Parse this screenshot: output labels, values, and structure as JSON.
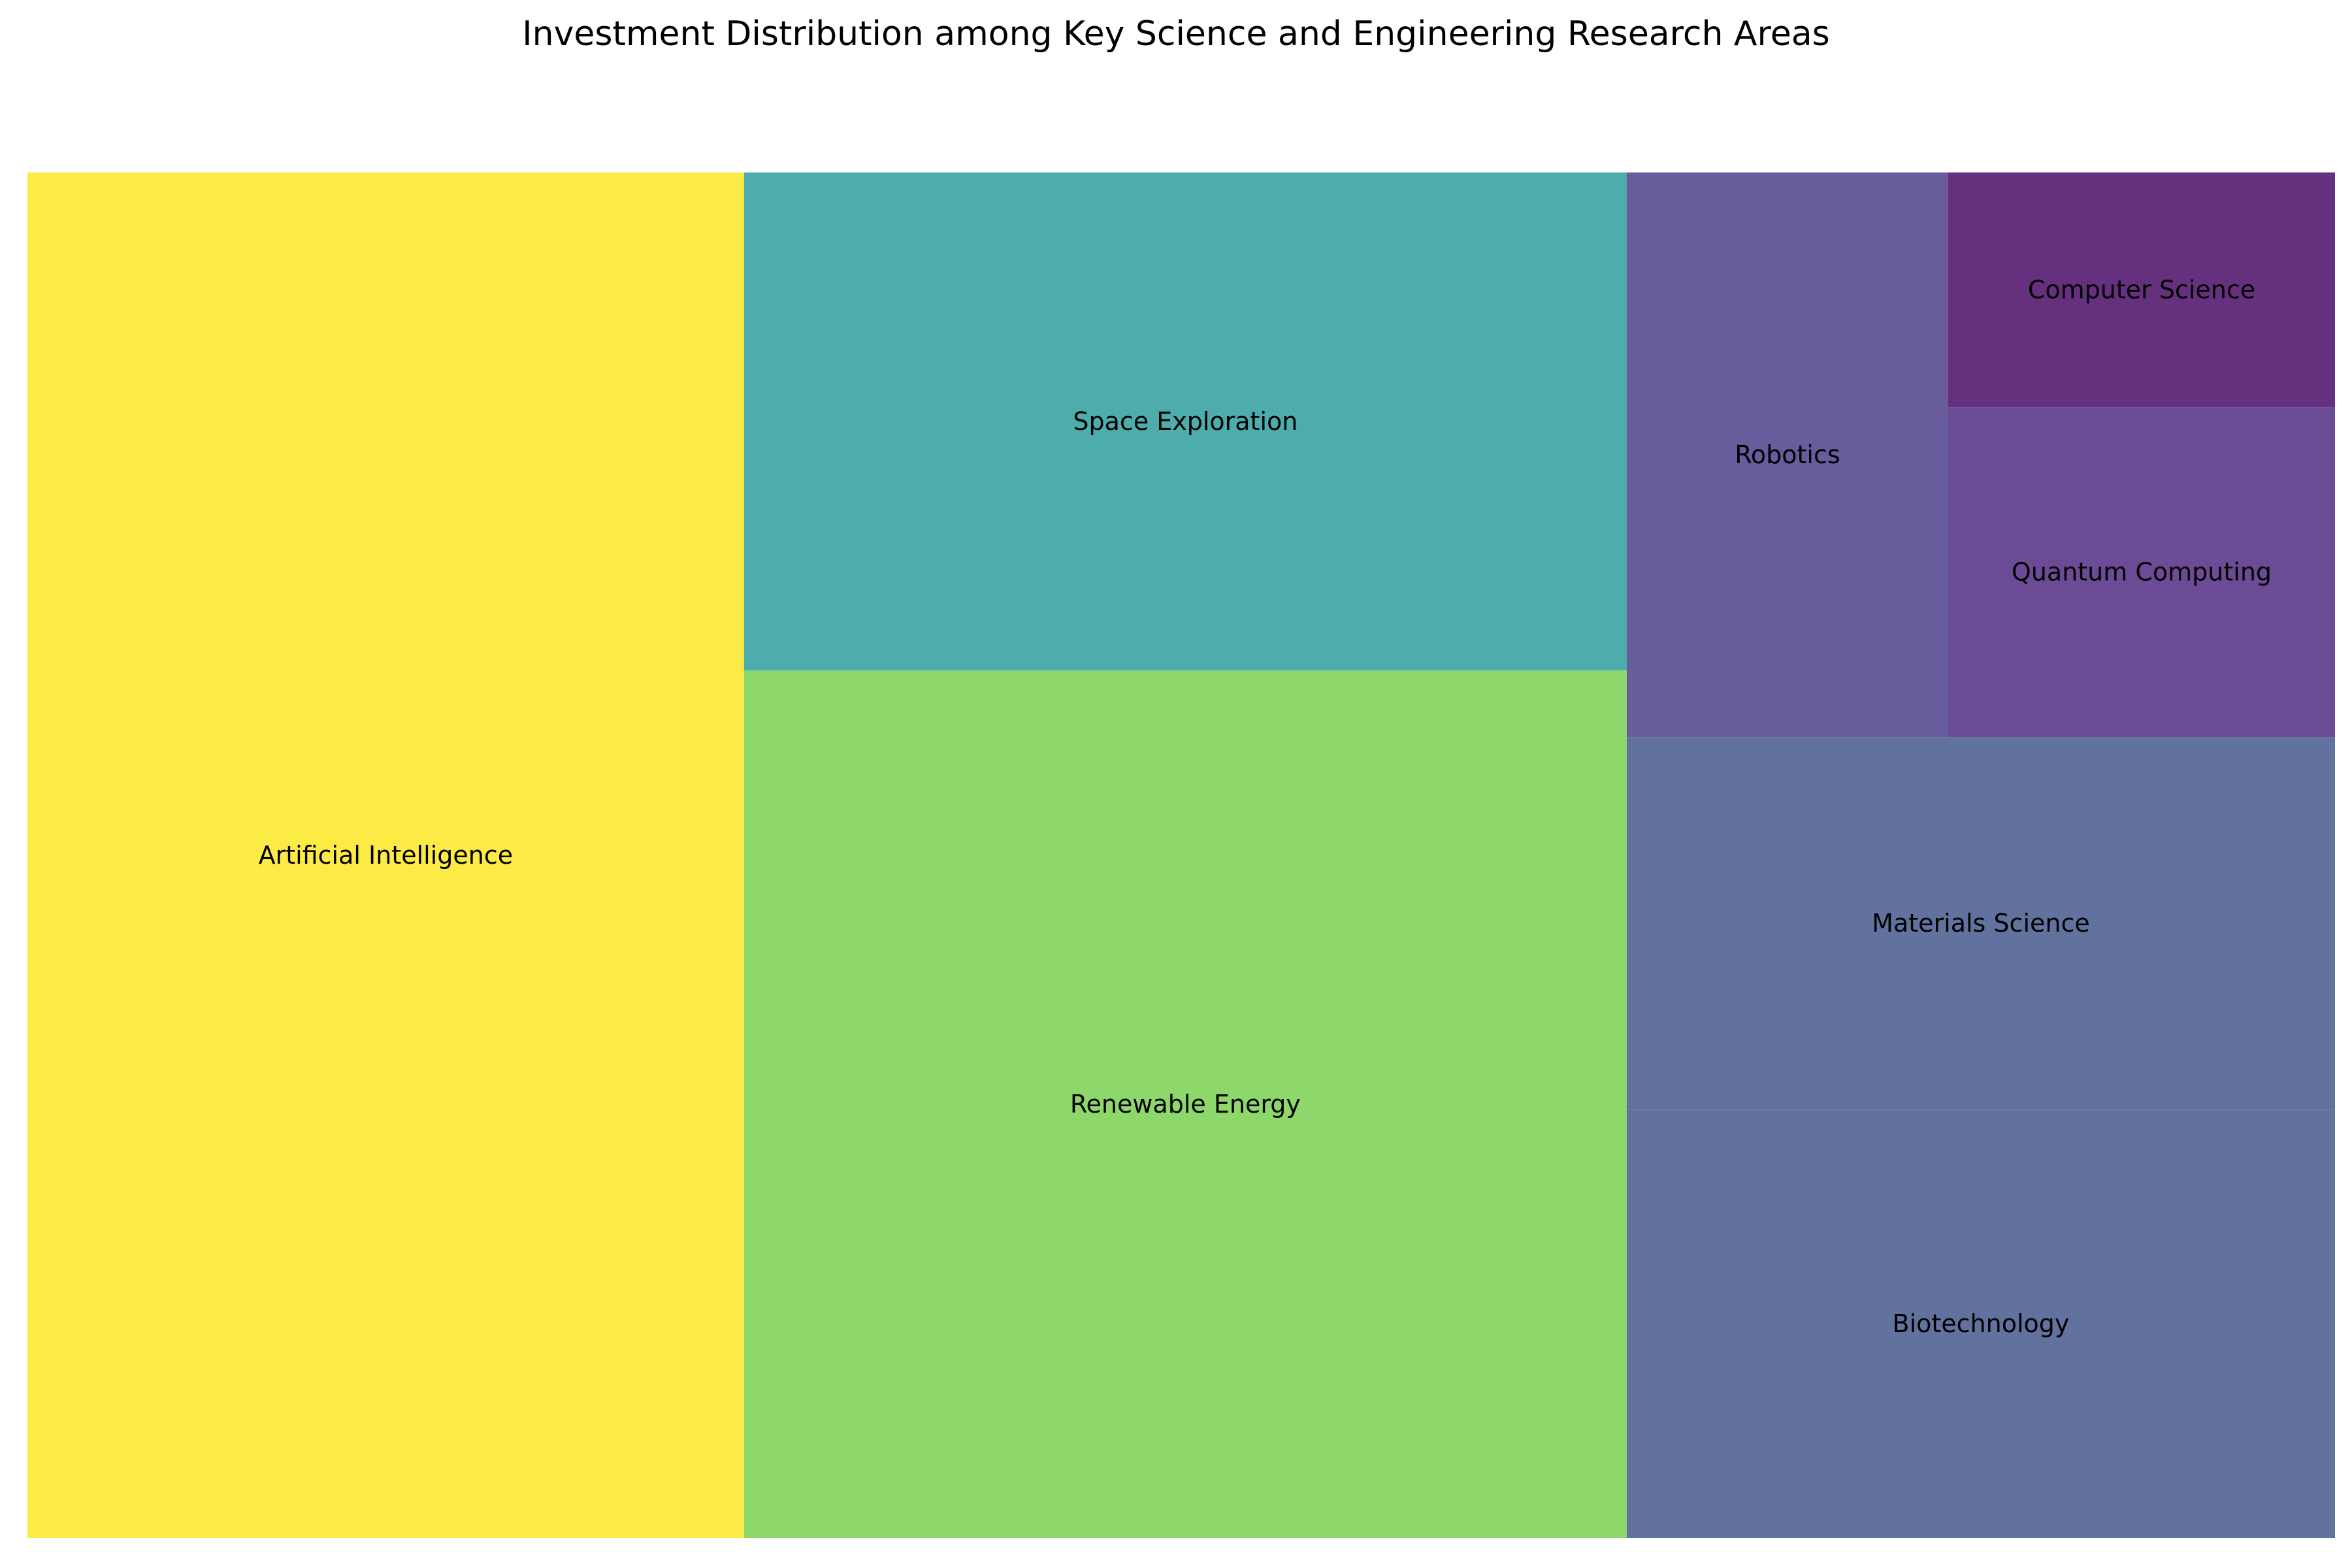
{
  "chart_data": {
    "type": "treemap",
    "title": "Investment Distribution among Key Science and Engineering Research Areas",
    "categories": [
      "Artificial Intelligence",
      "Renewable Energy",
      "Space Exploration",
      "Biotechnology",
      "Materials Science",
      "Robotics",
      "Quantum Computing",
      "Computer Science"
    ],
    "values": [
      34.5,
      27.0,
      15.5,
      10.7,
      9.3,
      6.4,
      4.5,
      3.2
    ],
    "colors": {
      "Artificial Intelligence": "#fde725",
      "Renewable Energy": "#7ad151",
      "Space Exploration": "#2e9e9e",
      "Biotechnology": "#46598e",
      "Materials Science": "#46598e",
      "Robotics": "#4f3f8c",
      "Quantum Computing": "#522b84",
      "Computer Science": "#4a0c66"
    },
    "opacity": 0.85
  }
}
